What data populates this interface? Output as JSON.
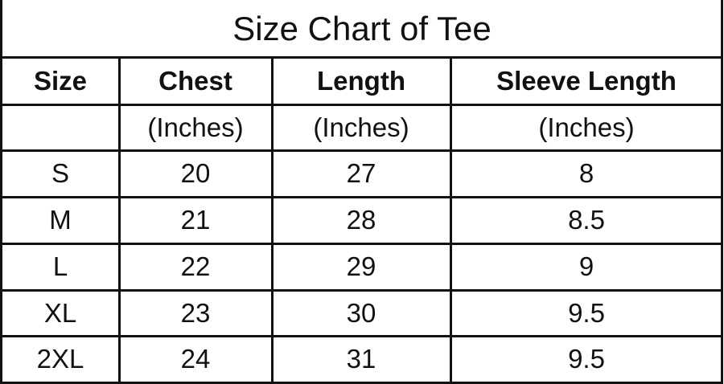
{
  "title": "Size Chart of  Tee",
  "headers": [
    "Size",
    "Chest",
    "Length",
    "Sleeve Length"
  ],
  "units": [
    "",
    "(Inches)",
    "(Inches)",
    "(Inches)"
  ],
  "rows": [
    [
      "S",
      "20",
      "27",
      "8"
    ],
    [
      "M",
      "21",
      "28",
      "8.5"
    ],
    [
      "L",
      "22",
      "29",
      "9"
    ],
    [
      "XL",
      "23",
      "30",
      "9.5"
    ],
    [
      "2XL",
      "24",
      "31",
      "9.5"
    ]
  ]
}
